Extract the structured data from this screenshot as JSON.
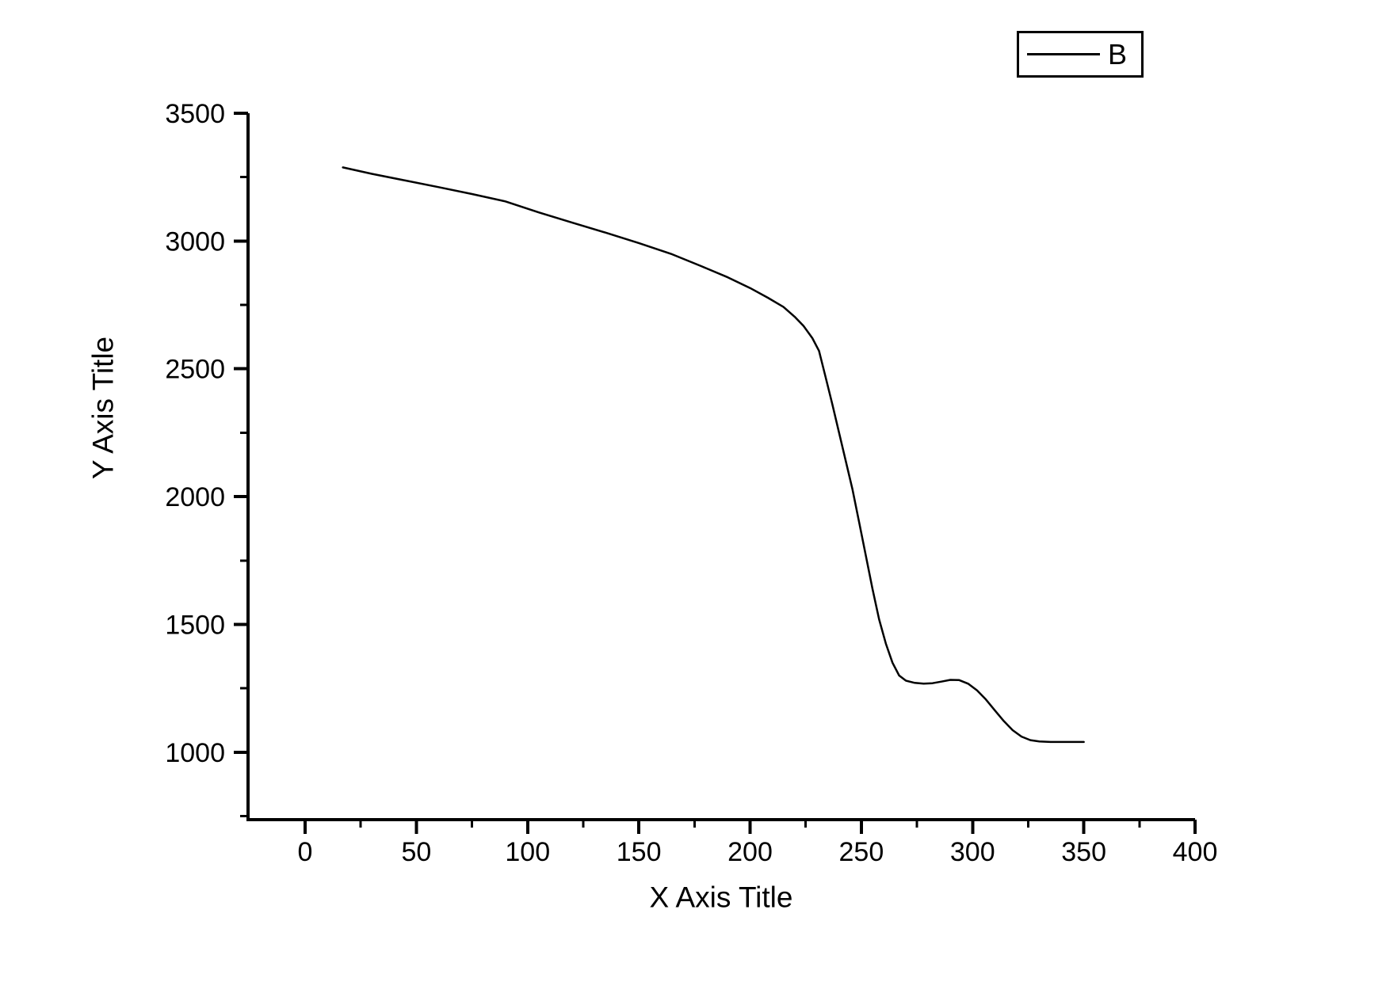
{
  "figure": {
    "background": "#ffffff",
    "x_axis_title": "X Axis Title",
    "y_axis_title": "Y Axis Title"
  },
  "legend": {
    "position": "top-right",
    "entries": [
      {
        "label": "B",
        "line_color": "#000000"
      }
    ]
  },
  "chart_data": {
    "type": "line",
    "title": "",
    "xlabel": "X Axis Title",
    "ylabel": "Y Axis Title",
    "xlim": [
      -25.65,
      400
    ],
    "ylim": [
      736,
      3500
    ],
    "grid": false,
    "legend_position": "top-right",
    "axis_color": "#000000",
    "x_major_ticks": [
      0,
      50,
      100,
      150,
      200,
      250,
      300,
      350,
      400
    ],
    "x_minor_ticks": [
      25,
      75,
      125,
      175,
      225,
      275,
      325,
      375
    ],
    "y_major_ticks": [
      1000,
      1500,
      2000,
      2500,
      3000,
      3500
    ],
    "y_minor_ticks": [
      750,
      1250,
      1750,
      2250,
      2750,
      3250
    ],
    "series": [
      {
        "name": "B",
        "color": "#000000",
        "points": [
          [
            17,
            3288
          ],
          [
            30,
            3263
          ],
          [
            45,
            3237
          ],
          [
            60,
            3211
          ],
          [
            75,
            3184
          ],
          [
            90,
            3155
          ],
          [
            105,
            3112
          ],
          [
            120,
            3072
          ],
          [
            135,
            3033
          ],
          [
            150,
            2992
          ],
          [
            165,
            2948
          ],
          [
            178,
            2902
          ],
          [
            190,
            2858
          ],
          [
            200,
            2816
          ],
          [
            208,
            2778
          ],
          [
            215,
            2742
          ],
          [
            220,
            2704
          ],
          [
            224,
            2668
          ],
          [
            228,
            2620
          ],
          [
            231,
            2570
          ],
          [
            234,
            2465
          ],
          [
            237,
            2360
          ],
          [
            240,
            2250
          ],
          [
            243,
            2140
          ],
          [
            246,
            2030
          ],
          [
            249,
            1900
          ],
          [
            252,
            1770
          ],
          [
            255,
            1640
          ],
          [
            258,
            1520
          ],
          [
            261,
            1425
          ],
          [
            264,
            1350
          ],
          [
            267,
            1300
          ],
          [
            270,
            1280
          ],
          [
            274,
            1271
          ],
          [
            278,
            1268
          ],
          [
            282,
            1270
          ],
          [
            286,
            1276
          ],
          [
            290,
            1283
          ],
          [
            294,
            1282
          ],
          [
            298,
            1268
          ],
          [
            302,
            1242
          ],
          [
            306,
            1206
          ],
          [
            310,
            1164
          ],
          [
            314,
            1122
          ],
          [
            318,
            1086
          ],
          [
            322,
            1061
          ],
          [
            326,
            1047
          ],
          [
            330,
            1042
          ],
          [
            335,
            1040
          ],
          [
            342,
            1040
          ],
          [
            350,
            1040
          ]
        ]
      }
    ]
  }
}
